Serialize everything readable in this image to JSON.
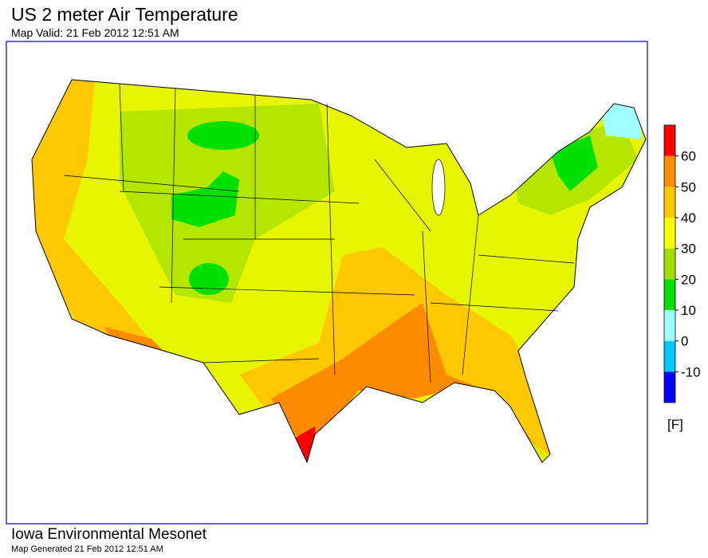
{
  "header": {
    "title": "US 2 meter Air Temperature",
    "subtitle": "Map Valid: 21 Feb 2012 12:51 AM"
  },
  "legend": {
    "lim": [
      -20,
      70
    ],
    "ticks": [
      -10,
      0,
      10,
      20,
      30,
      40,
      50,
      60
    ],
    "colors": [
      "#0000ff",
      "#00c8ff",
      "#a0ffff",
      "#00e000",
      "#a0e000",
      "#ffff00",
      "#ffc800",
      "#ff8c00",
      "#ff0000"
    ],
    "unit": "[F]"
  },
  "footer": {
    "source": "Iowa Environmental Mesonet",
    "generated": "Map Generated 21 Feb 2012 12:51 AM"
  }
}
